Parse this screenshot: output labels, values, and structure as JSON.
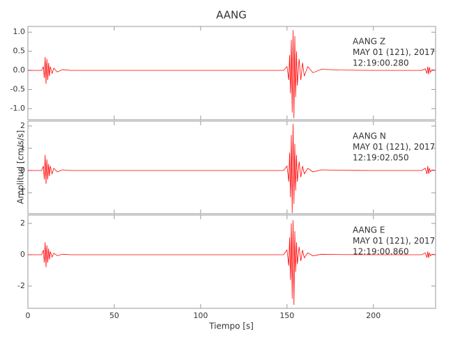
{
  "page": {
    "title": "AANG",
    "xlabel": "Tiempo [s]",
    "ylabel": "Amplitud [cm/s/s]"
  },
  "chart_data": [
    {
      "type": "line",
      "annotations": [
        "AANG   Z",
        "MAY 01 (121), 2017",
        "12:19:00.280"
      ],
      "xlim": [
        0,
        236
      ],
      "xticks": [
        0,
        50,
        100,
        150,
        200
      ],
      "ylim": [
        -1.29,
        1.15
      ],
      "yticks": [
        {
          "value": 1,
          "label": "1.0"
        },
        0.5,
        {
          "value": 0,
          "label": "0.0"
        },
        -0.5,
        {
          "value": -1,
          "label": "-1.0"
        }
      ],
      "x": [
        0,
        8,
        9,
        9.5,
        10,
        10.5,
        11,
        11.5,
        12,
        12.5,
        13,
        14,
        15,
        17,
        20,
        25,
        60,
        100,
        148,
        150,
        151,
        151.5,
        152,
        152.5,
        153,
        153.5,
        154,
        154.5,
        155,
        155.5,
        156,
        157,
        158,
        159,
        160,
        162,
        165,
        170,
        180,
        200,
        228,
        230,
        231,
        231.5,
        232,
        232.5,
        233,
        234,
        236
      ],
      "series": [
        {
          "color": "#ff0000",
          "values": [
            0,
            0,
            0.1,
            -0.2,
            0.35,
            -0.35,
            0.3,
            -0.25,
            0.2,
            -0.15,
            0.1,
            -0.08,
            0.06,
            -0.04,
            0.02,
            0,
            0,
            0,
            0,
            0.1,
            -0.25,
            0.4,
            -0.6,
            0.8,
            -1.1,
            1.05,
            -1.25,
            0.9,
            -0.7,
            0.5,
            -0.4,
            0.3,
            -0.25,
            0.2,
            -0.15,
            0.1,
            -0.06,
            0.03,
            0.01,
            0,
            0,
            0.04,
            -0.08,
            0.1,
            -0.1,
            0.08,
            -0.05,
            0.02,
            0
          ]
        }
      ]
    },
    {
      "type": "line",
      "annotations": [
        "AANG   N",
        "MAY 01 (121), 2017",
        "12:19:02.050"
      ],
      "xlim": [
        0,
        236
      ],
      "xticks": [
        0,
        50,
        100,
        150,
        200
      ],
      "ylim": [
        -1.94,
        2.22
      ],
      "yticks": [
        2,
        1,
        0,
        -1
      ],
      "x": [
        0,
        8,
        9,
        9.5,
        10,
        10.5,
        11,
        11.5,
        12,
        12.5,
        13,
        14,
        15,
        17,
        20,
        25,
        60,
        100,
        148,
        150,
        151,
        151.5,
        152,
        152.5,
        153,
        153.5,
        154,
        154.5,
        155,
        155.5,
        156,
        157,
        158,
        159,
        160,
        162,
        165,
        170,
        180,
        200,
        228,
        230,
        231,
        231.5,
        232,
        232.5,
        233,
        234,
        236
      ],
      "series": [
        {
          "color": "#ff0000",
          "values": [
            0,
            0,
            0.2,
            -0.4,
            0.7,
            -0.6,
            0.5,
            -0.4,
            0.3,
            -0.25,
            0.2,
            -0.15,
            0.1,
            -0.06,
            0.03,
            0,
            0,
            0,
            0,
            0.2,
            -0.5,
            0.8,
            -1.2,
            1.6,
            -1.9,
            2.1,
            -1.5,
            1.2,
            -0.9,
            0.7,
            -0.5,
            0.4,
            -0.3,
            0.2,
            -0.15,
            0.1,
            -0.06,
            0.03,
            0.01,
            0,
            0,
            0.1,
            -0.15,
            0.2,
            -0.15,
            0.1,
            -0.06,
            0.03,
            0
          ]
        }
      ]
    },
    {
      "type": "line",
      "annotations": [
        "AANG   E",
        "MAY 01 (121), 2017",
        "12:19:00.860"
      ],
      "xlim": [
        0,
        236
      ],
      "xticks": [
        0,
        50,
        100,
        150,
        200
      ],
      "ylim": [
        -3.42,
        2.53
      ],
      "yticks": [
        2,
        0,
        -2
      ],
      "x": [
        0,
        8,
        9,
        9.5,
        10,
        10.5,
        11,
        11.5,
        12,
        12.5,
        13,
        14,
        15,
        17,
        20,
        25,
        60,
        100,
        148,
        150,
        151,
        151.5,
        152,
        152.5,
        153,
        153.5,
        154,
        154.5,
        155,
        155.5,
        156,
        157,
        158,
        159,
        160,
        162,
        165,
        170,
        180,
        200,
        228,
        230,
        231,
        231.5,
        232,
        232.5,
        233,
        234,
        236
      ],
      "series": [
        {
          "color": "#ff0000",
          "values": [
            0,
            0,
            0.3,
            -0.5,
            0.8,
            -0.8,
            0.6,
            -0.5,
            0.4,
            -0.3,
            0.2,
            -0.15,
            0.1,
            -0.06,
            0.03,
            0,
            0,
            0,
            0,
            0.3,
            -0.7,
            1.1,
            -1.6,
            2.0,
            -2.8,
            2.2,
            -3.2,
            1.5,
            -1.1,
            0.8,
            -0.6,
            0.5,
            -0.4,
            0.3,
            -0.2,
            0.12,
            -0.07,
            0.03,
            0.01,
            0,
            0,
            0.12,
            -0.18,
            0.2,
            -0.2,
            0.12,
            -0.07,
            0.03,
            0
          ]
        }
      ]
    }
  ]
}
